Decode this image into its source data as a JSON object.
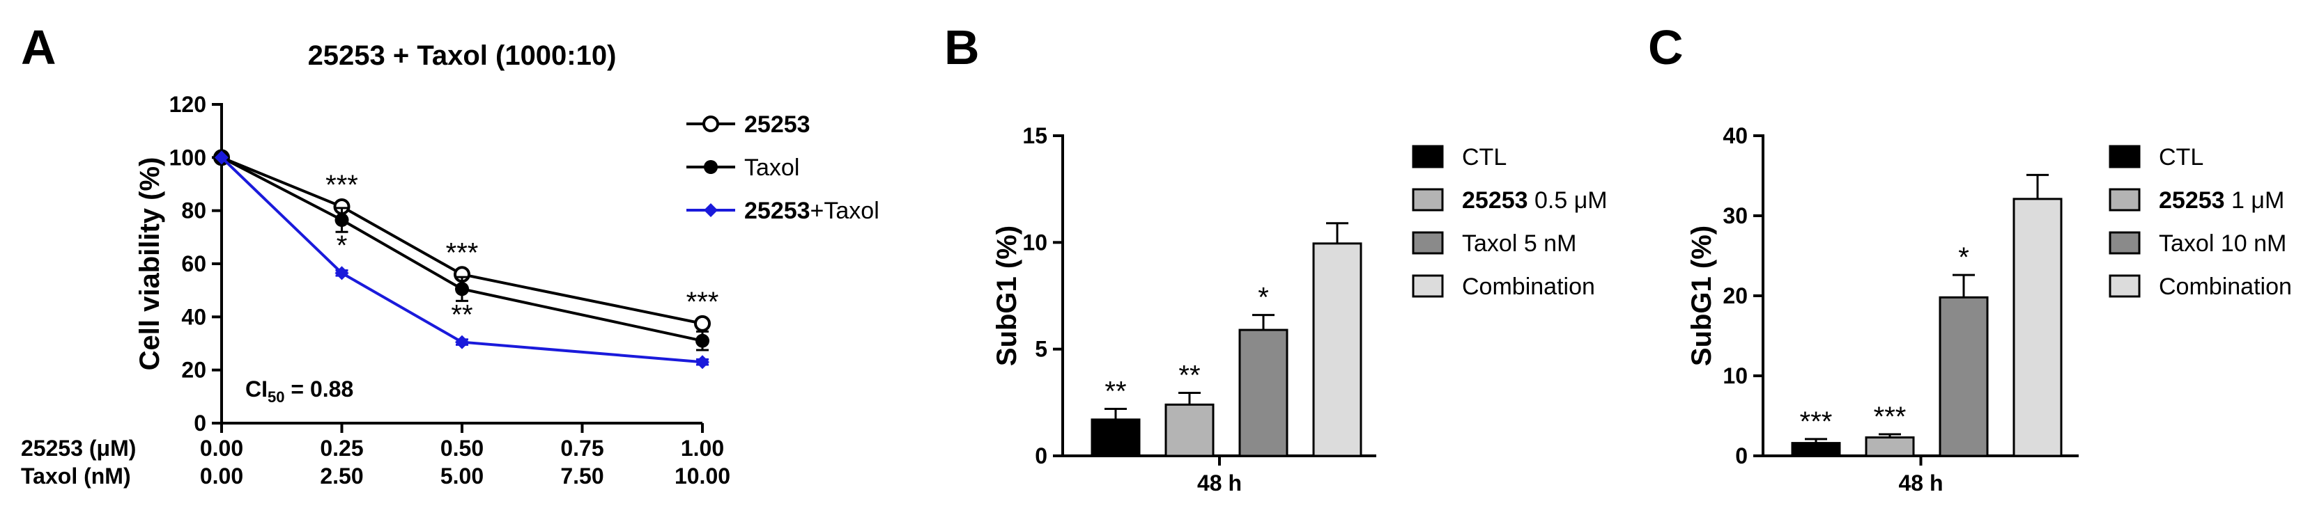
{
  "panels": [
    {
      "letter": "A"
    },
    {
      "letter": "B"
    },
    {
      "letter": "C"
    }
  ],
  "chart_data": [
    {
      "type": "line",
      "title": "25253 + Taxol (1000:10)",
      "ylabel": "Cell viability (%)",
      "ylim": [
        0,
        120
      ],
      "yticks": [
        "0",
        "20",
        "40",
        "60",
        "80",
        "100",
        "120"
      ],
      "x": [
        0,
        0.25,
        0.5,
        0.75,
        1.0
      ],
      "xaxis_rows": [
        {
          "label": "25253 (μM)",
          "ticks": [
            "0.00",
            "0.25",
            "0.50",
            "0.75",
            "1.00"
          ]
        },
        {
          "label": "Taxol (nM)",
          "ticks": [
            "0.00",
            "2.50",
            "5.00",
            "7.50",
            "10.00"
          ]
        }
      ],
      "series": [
        {
          "name": "25253",
          "name_bold": "25253",
          "name_rest": "",
          "x": [
            0,
            0.25,
            0.5,
            1.0
          ],
          "values": [
            100,
            81.5,
            56,
            37.5
          ],
          "errors": [
            0,
            1.5,
            1.5,
            1.5
          ],
          "color": "#000000",
          "marker": "open-circle"
        },
        {
          "name": "Taxol",
          "name_bold": "",
          "name_rest": "Taxol",
          "x": [
            0,
            0.25,
            0.5,
            1.0
          ],
          "values": [
            100,
            76.5,
            50.5,
            31
          ],
          "errors": [
            0,
            4.5,
            4.5,
            3.5
          ],
          "color": "#000000",
          "marker": "filled-circle"
        },
        {
          "name": "25253+Taxol",
          "name_bold": "25253",
          "name_rest": "+Taxol",
          "x": [
            0,
            0.25,
            0.5,
            1.0
          ],
          "values": [
            100,
            56.5,
            30.5,
            23
          ],
          "errors": [
            0,
            1,
            1,
            1
          ],
          "color": "#1a1adb",
          "marker": "diamond"
        }
      ],
      "annotations": [
        {
          "x": 0.25,
          "y": 81.5,
          "text": "***",
          "pos": "above"
        },
        {
          "x": 0.25,
          "y": 76.5,
          "text": "*",
          "pos": "below"
        },
        {
          "x": 0.5,
          "y": 56,
          "text": "***",
          "pos": "above"
        },
        {
          "x": 0.5,
          "y": 50.5,
          "text": "**",
          "pos": "below"
        },
        {
          "x": 1.0,
          "y": 37.5,
          "text": "***",
          "pos": "above"
        }
      ],
      "ci_text": {
        "prefix": "CI",
        "sub": "50",
        "suffix": " = 0.88"
      },
      "grid": false,
      "legend": "top-right"
    },
    {
      "type": "bar",
      "ylabel": "SubG1 (%)",
      "ylim": [
        0,
        15
      ],
      "yticks": [
        "0",
        "5",
        "10",
        "15"
      ],
      "xlabel": "48 h",
      "categories": [
        "CTL",
        "25253 0.5 μM",
        "Taxol 5 nM",
        "Combination"
      ],
      "legend_items": [
        {
          "bold": "",
          "rest": "CTL"
        },
        {
          "bold": "25253",
          "rest": " 0.5 μM"
        },
        {
          "bold": "",
          "rest": "Taxol 5 nM"
        },
        {
          "bold": "",
          "rest": "Combination"
        }
      ],
      "values": [
        1.7,
        2.4,
        5.9,
        9.95
      ],
      "errors": [
        0.5,
        0.55,
        0.7,
        0.95
      ],
      "significance": [
        "**",
        "**",
        "*",
        ""
      ],
      "colors": [
        "#000000",
        "#b4b4b4",
        "#8a8a8a",
        "#dcdcdc"
      ],
      "grid": false,
      "legend": "right"
    },
    {
      "type": "bar",
      "ylabel": "SubG1 (%)",
      "ylim": [
        0,
        40
      ],
      "yticks": [
        "0",
        "10",
        "20",
        "30",
        "40"
      ],
      "xlabel": "48 h",
      "categories": [
        "CTL",
        "25253 1 μM",
        "Taxol 10 nM",
        "Combination"
      ],
      "legend_items": [
        {
          "bold": "",
          "rest": "CTL"
        },
        {
          "bold": "25253",
          "rest": " 1 μM"
        },
        {
          "bold": "",
          "rest": "Taxol 10 nM"
        },
        {
          "bold": "",
          "rest": "Combination"
        }
      ],
      "values": [
        1.6,
        2.3,
        19.8,
        32.1
      ],
      "errors": [
        0.5,
        0.4,
        2.8,
        3.0
      ],
      "significance": [
        "***",
        "***",
        "*",
        ""
      ],
      "colors": [
        "#000000",
        "#b4b4b4",
        "#8a8a8a",
        "#dcdcdc"
      ],
      "grid": false,
      "legend": "right"
    }
  ]
}
